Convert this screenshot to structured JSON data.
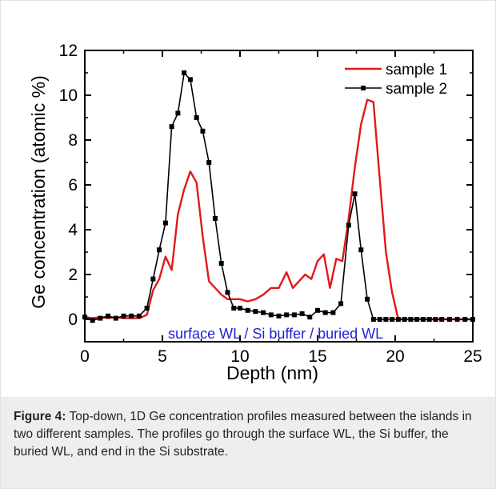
{
  "chart_data": {
    "type": "line",
    "xlabel": "Depth (nm)",
    "ylabel": "Ge concentration (atomic %)",
    "xlim": [
      0,
      25
    ],
    "ylim": [
      -1,
      12
    ],
    "xticks": [
      0,
      5,
      10,
      15,
      20,
      25
    ],
    "yticks": [
      0,
      2,
      4,
      6,
      8,
      10,
      12
    ],
    "xtick_labels": [
      "0",
      "5",
      "10",
      "15",
      "20",
      "25"
    ],
    "ytick_labels": [
      "0",
      "2",
      "4",
      "6",
      "8",
      "10",
      "12"
    ],
    "grid": false,
    "legend_position": "top-right",
    "annotation": {
      "text": "surface WL / Si buffer / buried WL",
      "color": "#1f1fd6"
    },
    "series": [
      {
        "name": "sample 1",
        "color": "#e0191b",
        "marker": "none",
        "x": [
          0,
          0.5,
          1,
          1.5,
          2,
          2.5,
          3,
          3.5,
          4,
          4.4,
          4.8,
          5.2,
          5.6,
          6.0,
          6.4,
          6.8,
          7.2,
          7.6,
          8.0,
          8.4,
          8.8,
          9.2,
          9.6,
          10.0,
          10.5,
          11.0,
          11.5,
          12.0,
          12.5,
          13.0,
          13.4,
          13.8,
          14.2,
          14.6,
          15.0,
          15.4,
          15.8,
          16.2,
          16.6,
          17.0,
          17.4,
          17.8,
          18.2,
          18.6,
          19.0,
          19.4,
          19.8,
          20.2,
          20.6,
          21.0,
          21.4,
          21.8,
          22.5,
          23.5,
          24.5,
          25
        ],
        "y": [
          0.1,
          0.05,
          0.1,
          0.05,
          0.1,
          0.05,
          0.05,
          0.05,
          0.2,
          1.3,
          1.8,
          2.8,
          2.2,
          4.7,
          5.8,
          6.6,
          6.1,
          3.7,
          1.7,
          1.4,
          1.1,
          0.9,
          0.9,
          0.9,
          0.8,
          0.9,
          1.1,
          1.4,
          1.4,
          2.1,
          1.4,
          1.7,
          2.0,
          1.8,
          2.6,
          2.9,
          1.4,
          2.7,
          2.6,
          4.5,
          6.8,
          8.7,
          9.8,
          9.7,
          6.3,
          3.0,
          1.2,
          0.0,
          0.0,
          0.0,
          0.0,
          0.0,
          0.0,
          0.0,
          0.0,
          0.0
        ]
      },
      {
        "name": "sample 2",
        "color": "#000000",
        "marker": "square",
        "x": [
          0,
          0.5,
          1.0,
          1.5,
          2.0,
          2.5,
          3.0,
          3.5,
          4.0,
          4.4,
          4.8,
          5.2,
          5.6,
          6.0,
          6.4,
          6.8,
          7.2,
          7.6,
          8.0,
          8.4,
          8.8,
          9.2,
          9.6,
          10.0,
          10.5,
          11.0,
          11.5,
          12.0,
          12.5,
          13.0,
          13.5,
          14.0,
          14.5,
          15.0,
          15.5,
          16.0,
          16.5,
          17.0,
          17.4,
          17.8,
          18.2,
          18.6,
          19.0,
          19.4,
          19.8,
          20.2,
          20.6,
          21.0,
          21.4,
          21.8,
          22.2,
          22.6,
          23.0,
          23.5,
          24.0,
          24.5,
          25.0
        ],
        "y": [
          0.1,
          -0.05,
          0.05,
          0.15,
          0.05,
          0.15,
          0.15,
          0.15,
          0.5,
          1.8,
          3.1,
          4.3,
          8.6,
          9.2,
          11.0,
          10.7,
          9.0,
          8.4,
          7.0,
          4.5,
          2.5,
          1.2,
          0.5,
          0.5,
          0.4,
          0.35,
          0.3,
          0.2,
          0.15,
          0.2,
          0.2,
          0.25,
          0.1,
          0.4,
          0.3,
          0.3,
          0.7,
          4.2,
          5.6,
          3.1,
          0.9,
          0.0,
          0.0,
          0.0,
          0.0,
          0.0,
          0.0,
          0.0,
          0.0,
          0.0,
          0.0,
          0.0,
          0.0,
          0.0,
          0.0,
          0.0,
          0.0
        ]
      }
    ]
  },
  "caption": {
    "label": "Figure 4:",
    "text": " Top-down, 1D Ge concentration profiles measured between the islands in two different samples. The profiles go through the surface WL, the Si buffer, the buried WL, and end in the Si substrate."
  }
}
